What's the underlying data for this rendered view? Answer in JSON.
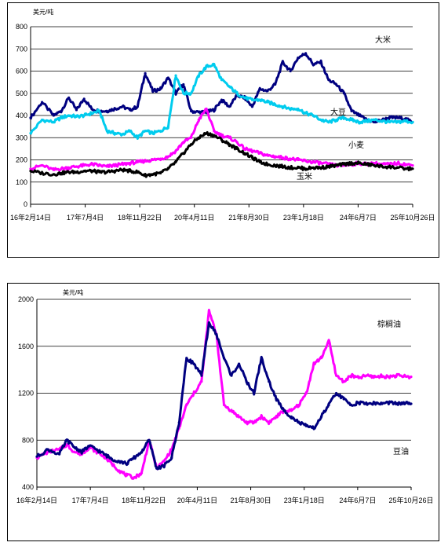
{
  "chart_data": [
    {
      "type": "line",
      "title": "",
      "unit_label": "美元/吨",
      "xlabel": "",
      "ylabel": "",
      "ylim": [
        0,
        800
      ],
      "yticks": [
        0,
        100,
        200,
        300,
        400,
        500,
        600,
        700,
        800
      ],
      "x_tick_labels": [
        "16年2月14日",
        "17年7月4日",
        "18年11月22日",
        "20年4月11日",
        "21年8月30日",
        "23年1月18日",
        "24年6月7日",
        "25年10月26日"
      ],
      "x": [
        0,
        0.03,
        0.06,
        0.08,
        0.1,
        0.12,
        0.14,
        0.16,
        0.18,
        0.2,
        0.22,
        0.24,
        0.26,
        0.28,
        0.3,
        0.32,
        0.34,
        0.36,
        0.38,
        0.4,
        0.42,
        0.44,
        0.46,
        0.48,
        0.5,
        0.52,
        0.54,
        0.56,
        0.58,
        0.6,
        0.62,
        0.64,
        0.66,
        0.68,
        0.7,
        0.72,
        0.74,
        0.76,
        0.78,
        0.8,
        0.82,
        0.84,
        0.86,
        0.88,
        0.9,
        0.92,
        0.94,
        0.96,
        0.98,
        1.0
      ],
      "grid": true,
      "legend": "inline labels",
      "series": [
        {
          "name": "大米",
          "color": "#000080",
          "values": [
            390,
            460,
            400,
            420,
            480,
            425,
            475,
            430,
            420,
            420,
            430,
            440,
            425,
            440,
            590,
            510,
            520,
            570,
            500,
            540,
            420,
            415,
            415,
            425,
            470,
            440,
            490,
            480,
            440,
            520,
            510,
            540,
            640,
            600,
            660,
            680,
            630,
            640,
            560,
            540,
            500,
            420,
            400,
            380,
            370,
            380,
            390,
            390,
            385,
            370
          ]
        },
        {
          "name": "大豆",
          "color": "#00CCEE",
          "values": [
            320,
            380,
            370,
            390,
            400,
            395,
            400,
            410,
            420,
            330,
            320,
            315,
            330,
            300,
            330,
            320,
            330,
            350,
            580,
            500,
            500,
            580,
            620,
            630,
            560,
            530,
            500,
            480,
            470,
            470,
            460,
            450,
            440,
            430,
            430,
            410,
            400,
            380,
            370,
            380,
            390,
            380,
            370,
            375,
            380,
            375,
            370,
            370,
            375,
            370
          ]
        },
        {
          "name": "小麦",
          "color": "#FF00FF",
          "values": [
            160,
            175,
            155,
            160,
            165,
            170,
            175,
            180,
            175,
            170,
            175,
            180,
            185,
            190,
            195,
            200,
            205,
            215,
            240,
            280,
            300,
            380,
            430,
            330,
            310,
            300,
            280,
            250,
            240,
            230,
            220,
            215,
            210,
            205,
            200,
            195,
            190,
            185,
            180,
            175,
            175,
            180,
            185,
            180,
            185,
            180,
            180,
            185,
            180,
            175
          ]
        },
        {
          "name": "玉米",
          "color": "#000000",
          "values": [
            150,
            140,
            135,
            140,
            145,
            145,
            150,
            150,
            145,
            145,
            150,
            155,
            150,
            145,
            130,
            135,
            140,
            160,
            190,
            230,
            270,
            300,
            320,
            310,
            290,
            270,
            250,
            230,
            210,
            190,
            180,
            175,
            170,
            165,
            165,
            160,
            165,
            165,
            170,
            175,
            180,
            185,
            185,
            180,
            175,
            170,
            168,
            165,
            160,
            160
          ]
        }
      ],
      "labels": [
        "大米",
        "大豆",
        "小麦",
        "玉米"
      ]
    },
    {
      "type": "line",
      "title": "",
      "unit_label": "美元/吨",
      "xlabel": "",
      "ylabel": "",
      "ylim": [
        400,
        2000
      ],
      "yticks": [
        400,
        800,
        1200,
        1600,
        2000
      ],
      "x_tick_labels": [
        "16年2月14日",
        "17年7月4日",
        "18年11月22日",
        "20年4月11日",
        "21年8月30日",
        "23年1月18日",
        "24年6月7日",
        "25年10月26日"
      ],
      "x": [
        0,
        0.03,
        0.06,
        0.08,
        0.1,
        0.12,
        0.14,
        0.16,
        0.18,
        0.2,
        0.22,
        0.24,
        0.26,
        0.28,
        0.3,
        0.32,
        0.34,
        0.36,
        0.38,
        0.4,
        0.42,
        0.44,
        0.46,
        0.48,
        0.5,
        0.52,
        0.54,
        0.56,
        0.58,
        0.6,
        0.62,
        0.64,
        0.66,
        0.68,
        0.7,
        0.72,
        0.74,
        0.76,
        0.78,
        0.8,
        0.82,
        0.84,
        0.86,
        0.88,
        0.9,
        0.92,
        0.94,
        0.96,
        0.98,
        1.0
      ],
      "grid": true,
      "legend": "inline labels",
      "series": [
        {
          "name": "棕榈油",
          "color": "#FF00FF",
          "values": [
            650,
            700,
            720,
            760,
            700,
            680,
            740,
            700,
            660,
            600,
            540,
            500,
            480,
            520,
            800,
            560,
            620,
            720,
            900,
            1100,
            1200,
            1300,
            1900,
            1700,
            1100,
            1050,
            1000,
            950,
            950,
            1000,
            950,
            1000,
            1050,
            1050,
            1100,
            1200,
            1450,
            1500,
            1650,
            1350,
            1300,
            1350,
            1330,
            1350,
            1340,
            1345,
            1340,
            1350,
            1345,
            1340
          ]
        },
        {
          "name": "豆油",
          "color": "#000080",
          "values": [
            660,
            720,
            680,
            800,
            740,
            700,
            750,
            720,
            680,
            640,
            620,
            600,
            650,
            700,
            800,
            560,
            580,
            650,
            950,
            1500,
            1450,
            1350,
            1800,
            1700,
            1500,
            1350,
            1450,
            1300,
            1200,
            1500,
            1300,
            1150,
            1050,
            1000,
            950,
            920,
            900,
            1000,
            1100,
            1200,
            1150,
            1100,
            1120,
            1110,
            1115,
            1110,
            1120,
            1110,
            1115,
            1110
          ]
        }
      ],
      "labels": [
        "棕榈油",
        "豆油"
      ]
    }
  ]
}
